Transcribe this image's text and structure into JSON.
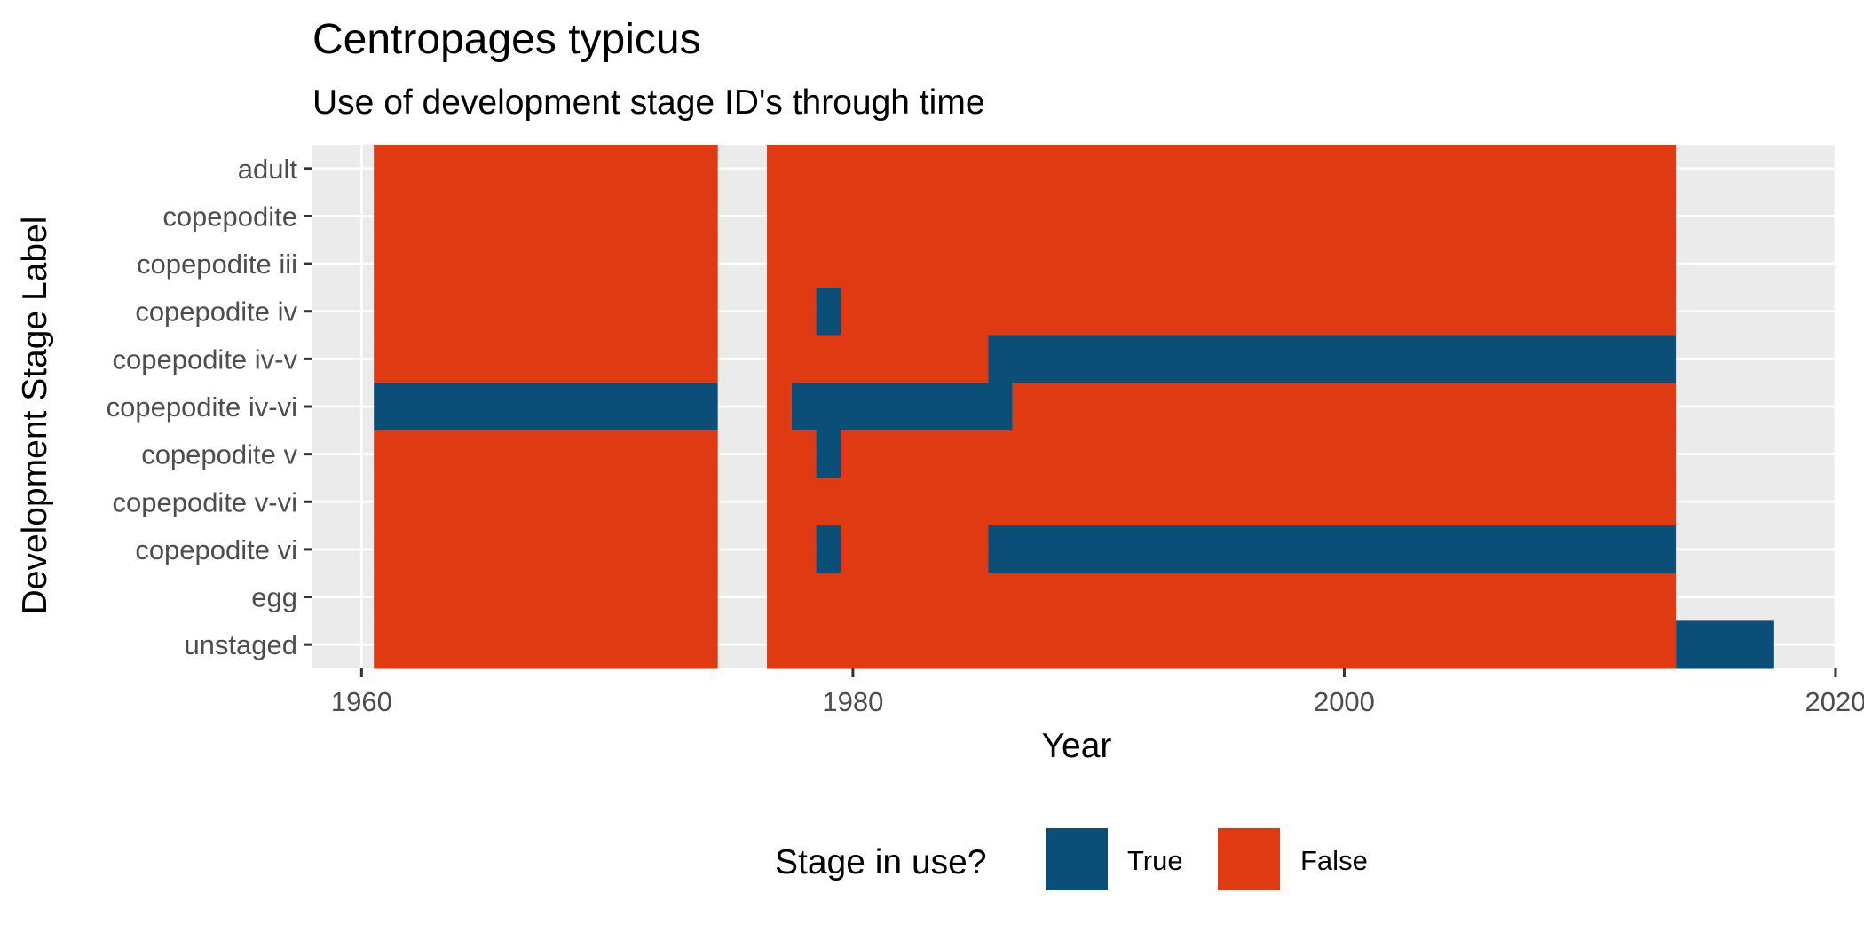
{
  "chart_data": {
    "type": "heatmap",
    "title": "Centropages typicus",
    "subtitle": "Use of development stage ID's through time",
    "xlabel": "Year",
    "ylabel": "Development Stage Label",
    "xlim": [
      1958,
      2020
    ],
    "x_ticks": [
      1960,
      1980,
      2000,
      2020
    ],
    "categories": [
      "adult",
      "copepodite",
      "copepodite iii",
      "copepodite iv",
      "copepodite iv-v",
      "copepodite iv-vi",
      "copepodite v",
      "copepodite v-vi",
      "copepodite vi",
      "egg",
      "unstaged"
    ],
    "legend": {
      "title": "Stage in use?",
      "position": "bottom",
      "entries": [
        {
          "label": "True",
          "color": "#0b4f78"
        },
        {
          "label": "False",
          "color": "#e03a12"
        }
      ]
    },
    "cells": [
      {
        "stage": "adult",
        "start": 1960.5,
        "end": 1974.5,
        "in_use": false
      },
      {
        "stage": "adult",
        "start": 1976.5,
        "end": 2013.5,
        "in_use": false
      },
      {
        "stage": "copepodite",
        "start": 1960.5,
        "end": 1974.5,
        "in_use": false
      },
      {
        "stage": "copepodite",
        "start": 1976.5,
        "end": 2013.5,
        "in_use": false
      },
      {
        "stage": "copepodite iii",
        "start": 1960.5,
        "end": 1974.5,
        "in_use": false
      },
      {
        "stage": "copepodite iii",
        "start": 1976.5,
        "end": 2013.5,
        "in_use": false
      },
      {
        "stage": "copepodite iv",
        "start": 1960.5,
        "end": 1974.5,
        "in_use": false
      },
      {
        "stage": "copepodite iv",
        "start": 1976.5,
        "end": 1978.5,
        "in_use": false
      },
      {
        "stage": "copepodite iv",
        "start": 1978.5,
        "end": 1979.5,
        "in_use": true
      },
      {
        "stage": "copepodite iv",
        "start": 1979.5,
        "end": 2013.5,
        "in_use": false
      },
      {
        "stage": "copepodite iv-v",
        "start": 1960.5,
        "end": 1974.5,
        "in_use": false
      },
      {
        "stage": "copepodite iv-v",
        "start": 1976.5,
        "end": 1985.5,
        "in_use": false
      },
      {
        "stage": "copepodite iv-v",
        "start": 1985.5,
        "end": 2013.5,
        "in_use": true
      },
      {
        "stage": "copepodite iv-vi",
        "start": 1960.5,
        "end": 1974.5,
        "in_use": true
      },
      {
        "stage": "copepodite iv-vi",
        "start": 1976.5,
        "end": 1977.5,
        "in_use": false
      },
      {
        "stage": "copepodite iv-vi",
        "start": 1977.5,
        "end": 1986.5,
        "in_use": true
      },
      {
        "stage": "copepodite iv-vi",
        "start": 1986.5,
        "end": 2013.5,
        "in_use": false
      },
      {
        "stage": "copepodite v",
        "start": 1960.5,
        "end": 1974.5,
        "in_use": false
      },
      {
        "stage": "copepodite v",
        "start": 1976.5,
        "end": 1978.5,
        "in_use": false
      },
      {
        "stage": "copepodite v",
        "start": 1978.5,
        "end": 1979.5,
        "in_use": true
      },
      {
        "stage": "copepodite v",
        "start": 1979.5,
        "end": 2013.5,
        "in_use": false
      },
      {
        "stage": "copepodite v-vi",
        "start": 1960.5,
        "end": 1974.5,
        "in_use": false
      },
      {
        "stage": "copepodite v-vi",
        "start": 1976.5,
        "end": 2013.5,
        "in_use": false
      },
      {
        "stage": "copepodite vi",
        "start": 1960.5,
        "end": 1974.5,
        "in_use": false
      },
      {
        "stage": "copepodite vi",
        "start": 1976.5,
        "end": 1978.5,
        "in_use": false
      },
      {
        "stage": "copepodite vi",
        "start": 1978.5,
        "end": 1979.5,
        "in_use": true
      },
      {
        "stage": "copepodite vi",
        "start": 1979.5,
        "end": 1985.5,
        "in_use": false
      },
      {
        "stage": "copepodite vi",
        "start": 1985.5,
        "end": 2013.5,
        "in_use": true
      },
      {
        "stage": "egg",
        "start": 1960.5,
        "end": 1974.5,
        "in_use": false
      },
      {
        "stage": "egg",
        "start": 1976.5,
        "end": 2013.5,
        "in_use": false
      },
      {
        "stage": "unstaged",
        "start": 1960.5,
        "end": 1974.5,
        "in_use": false
      },
      {
        "stage": "unstaged",
        "start": 1976.5,
        "end": 2013.5,
        "in_use": false
      },
      {
        "stage": "unstaged",
        "start": 2013.5,
        "end": 2017.5,
        "in_use": true
      }
    ],
    "colors": {
      "panel_background": "#ebebeb",
      "grid": "#ffffff",
      "tick": "#333333"
    }
  }
}
